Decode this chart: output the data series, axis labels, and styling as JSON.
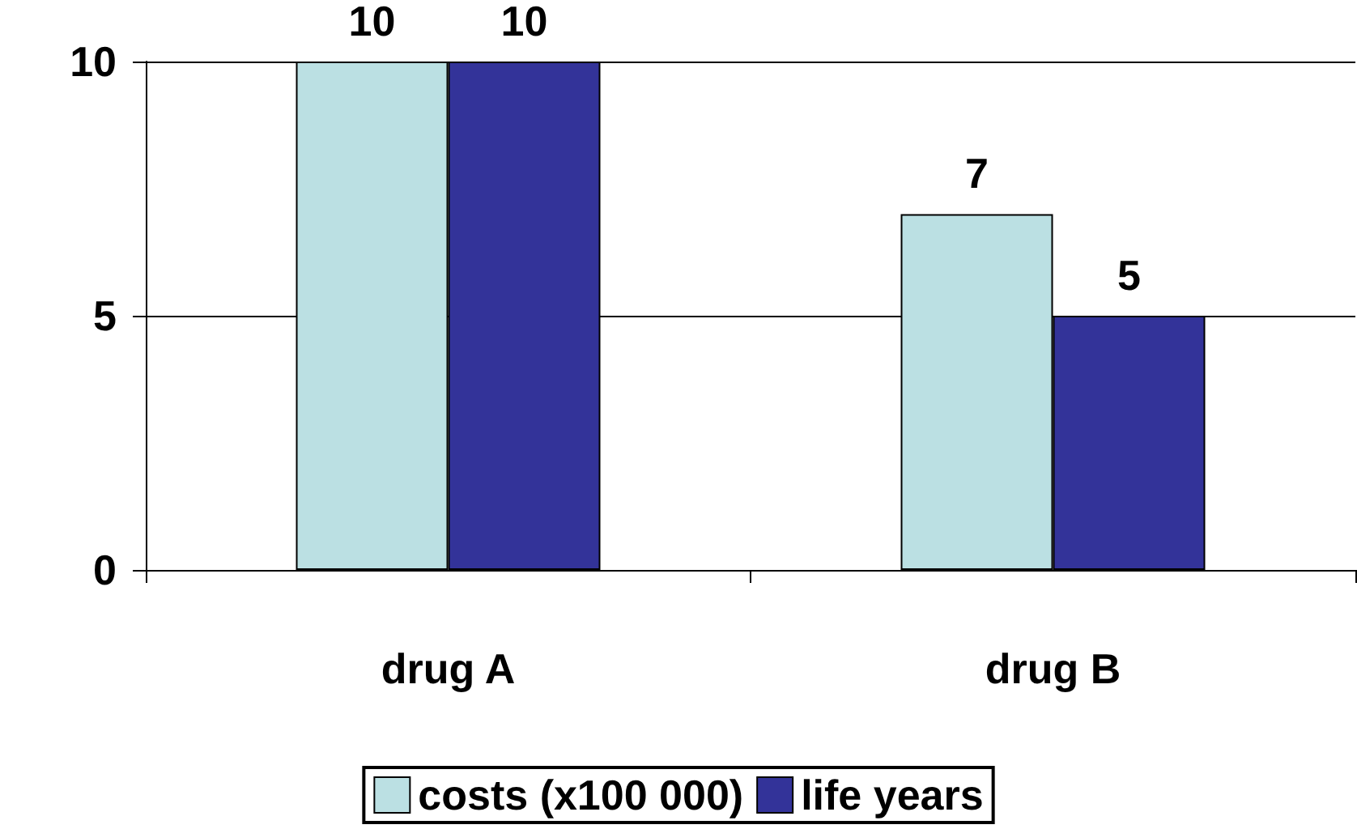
{
  "chart_data": {
    "type": "bar",
    "categories": [
      "drug A",
      "drug B"
    ],
    "series": [
      {
        "name": "costs (x100 000)",
        "color": "#bbe0e3",
        "values": [
          10,
          7
        ]
      },
      {
        "name": "life years",
        "color": "#333399",
        "values": [
          10,
          5
        ]
      }
    ],
    "ylim": [
      0,
      10
    ],
    "yticks": [
      0,
      5,
      10
    ],
    "grid": "y",
    "legend": "bottom",
    "data_labels": true
  }
}
